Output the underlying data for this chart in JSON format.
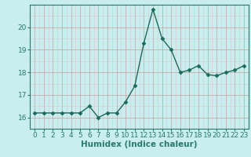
{
  "x": [
    0,
    1,
    2,
    3,
    4,
    5,
    6,
    7,
    8,
    9,
    10,
    11,
    12,
    13,
    14,
    15,
    16,
    17,
    18,
    19,
    20,
    21,
    22,
    23
  ],
  "y": [
    16.2,
    16.2,
    16.2,
    16.2,
    16.2,
    16.2,
    16.5,
    16.0,
    16.2,
    16.2,
    16.7,
    17.4,
    19.3,
    20.8,
    19.5,
    19.0,
    18.0,
    18.1,
    18.3,
    17.9,
    17.85,
    18.0,
    18.1,
    18.3
  ],
  "line_color": "#1a6b5a",
  "marker": "D",
  "marker_size": 2.5,
  "background_color": "#c8eef0",
  "grid_color_major": "#c8a0a0",
  "grid_color_minor": "#ddc8c8",
  "xlabel": "Humidex (Indice chaleur)",
  "ylim": [
    15.5,
    21.0
  ],
  "xlim": [
    -0.5,
    23.5
  ],
  "yticks": [
    16,
    17,
    18,
    19,
    20
  ],
  "xticks": [
    0,
    1,
    2,
    3,
    4,
    5,
    6,
    7,
    8,
    9,
    10,
    11,
    12,
    13,
    14,
    15,
    16,
    17,
    18,
    19,
    20,
    21,
    22,
    23
  ],
  "xlabel_fontsize": 7.5,
  "tick_fontsize": 6.5,
  "line_width": 1.0,
  "spine_color": "#2a7a6a"
}
